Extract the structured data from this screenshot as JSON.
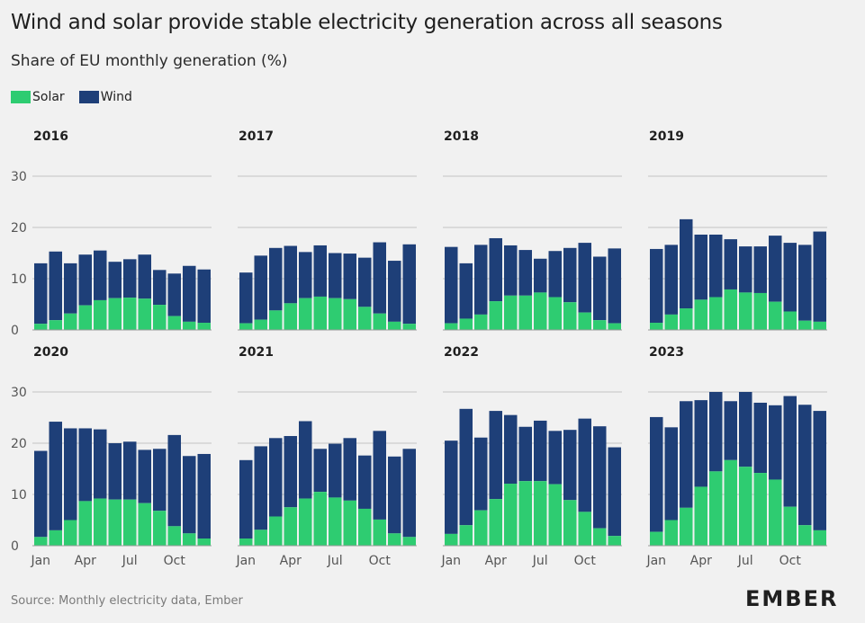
{
  "header": {
    "title": "Wind and solar provide stable electricity generation across all seasons",
    "subtitle": "Share of EU monthly generation (%)"
  },
  "legend": [
    {
      "label": "Solar",
      "color": "#2ecc71"
    },
    {
      "label": "Wind",
      "color": "#1e3f78"
    }
  ],
  "colors": {
    "solar": "#2ecc71",
    "wind": "#1e3f78",
    "grid": "#c4c4c4",
    "axis_text": "#555555"
  },
  "footer": {
    "source": "Source: Monthly electricity data, Ember",
    "logo": "EMBER"
  },
  "chart_data": {
    "type": "bar",
    "stacked": true,
    "y_ticks": [
      0,
      10,
      20,
      30
    ],
    "ylim": [
      0,
      30
    ],
    "x_tick_labels": [
      "Jan",
      "Apr",
      "Jul",
      "Oct"
    ],
    "months": [
      "Jan",
      "Feb",
      "Mar",
      "Apr",
      "May",
      "Jun",
      "Jul",
      "Aug",
      "Sep",
      "Oct",
      "Nov",
      "Dec"
    ],
    "panels": [
      {
        "year": "2016",
        "solar": [
          1.2,
          1.9,
          3.2,
          4.8,
          5.8,
          6.2,
          6.3,
          6.1,
          4.9,
          2.7,
          1.6,
          1.4
        ],
        "wind": [
          11.8,
          13.4,
          9.8,
          9.9,
          9.7,
          7.1,
          7.5,
          8.6,
          6.8,
          8.3,
          10.9,
          10.4
        ]
      },
      {
        "year": "2017",
        "solar": [
          1.3,
          2.0,
          3.8,
          5.2,
          6.2,
          6.5,
          6.2,
          6.0,
          4.5,
          3.2,
          1.6,
          1.2
        ],
        "wind": [
          9.9,
          12.5,
          12.2,
          11.2,
          9.0,
          10.0,
          8.8,
          8.9,
          9.6,
          13.9,
          11.9,
          15.5
        ]
      },
      {
        "year": "2018",
        "solar": [
          1.3,
          2.2,
          3.0,
          5.6,
          6.7,
          6.7,
          7.3,
          6.4,
          5.4,
          3.4,
          1.9,
          1.3
        ],
        "wind": [
          14.9,
          10.8,
          13.6,
          12.3,
          9.8,
          8.9,
          6.6,
          9.0,
          10.6,
          13.6,
          12.4,
          14.6
        ]
      },
      {
        "year": "2019",
        "solar": [
          1.4,
          3.0,
          4.2,
          5.9,
          6.4,
          7.9,
          7.3,
          7.2,
          5.5,
          3.6,
          1.8,
          1.6
        ],
        "wind": [
          14.4,
          13.6,
          17.4,
          12.7,
          12.2,
          9.8,
          9.0,
          9.1,
          12.9,
          13.4,
          14.8,
          17.6
        ]
      },
      {
        "year": "2020",
        "solar": [
          1.7,
          3.0,
          5.0,
          8.7,
          9.2,
          9.0,
          9.0,
          8.3,
          6.8,
          3.8,
          2.4,
          1.4
        ],
        "wind": [
          16.8,
          21.2,
          17.9,
          14.2,
          13.5,
          11.0,
          11.3,
          10.4,
          12.1,
          17.8,
          15.1,
          16.5
        ]
      },
      {
        "year": "2021",
        "solar": [
          1.4,
          3.1,
          5.7,
          7.5,
          9.2,
          10.5,
          9.4,
          8.8,
          7.2,
          5.1,
          2.4,
          1.7
        ],
        "wind": [
          15.3,
          16.3,
          15.3,
          13.9,
          15.1,
          8.4,
          10.5,
          12.2,
          10.4,
          17.3,
          15.0,
          17.2
        ]
      },
      {
        "year": "2022",
        "solar": [
          2.3,
          4.0,
          6.9,
          9.1,
          12.1,
          12.6,
          12.6,
          12.0,
          8.9,
          6.6,
          3.4,
          1.9
        ],
        "wind": [
          18.2,
          22.7,
          14.2,
          17.2,
          13.4,
          10.6,
          11.8,
          10.4,
          13.7,
          18.2,
          19.9,
          17.3
        ]
      },
      {
        "year": "2023",
        "solar": [
          2.7,
          5.0,
          7.4,
          11.5,
          14.5,
          16.7,
          15.4,
          14.2,
          12.9,
          7.6,
          4.0,
          3.0
        ],
        "wind": [
          22.4,
          18.1,
          20.8,
          16.9,
          16.3,
          11.5,
          15.2,
          13.7,
          14.5,
          21.6,
          23.5,
          23.3
        ]
      }
    ]
  }
}
